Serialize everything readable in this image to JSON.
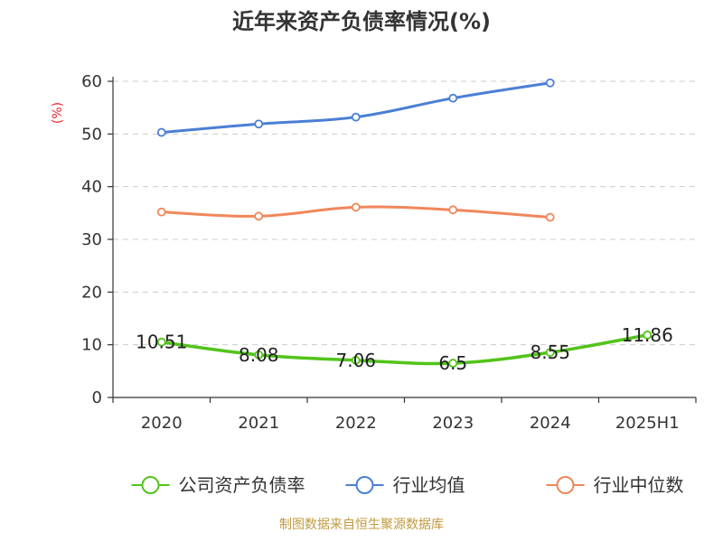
{
  "chart_data": {
    "type": "line",
    "title": "近年来资产负债率情况(%)",
    "ylabel": "(%)",
    "categories": [
      "2020",
      "2021",
      "2022",
      "2023",
      "2024",
      "2025H1"
    ],
    "ylim": [
      0,
      60
    ],
    "yticks": [
      0,
      10,
      20,
      30,
      40,
      50,
      60
    ],
    "grid": true,
    "legend_position": "bottom",
    "series": [
      {
        "name": "公司资产负债率",
        "color": "#52c41a",
        "values": [
          10.51,
          8.08,
          7.06,
          6.5,
          8.55,
          11.86
        ],
        "labels": [
          "10.51",
          "8.08",
          "7.06",
          "6.5",
          "8.55",
          "11.86"
        ]
      },
      {
        "name": "行业均值",
        "color": "#4a7fd4",
        "values": [
          50.3,
          51.9,
          53.2,
          56.8,
          59.7,
          null
        ]
      },
      {
        "name": "行业中位数",
        "color": "#f0875a",
        "values": [
          35.2,
          34.4,
          36.1,
          35.6,
          34.2,
          null
        ]
      }
    ]
  },
  "footer": {
    "source": "制图数据来自恒生聚源数据库"
  }
}
